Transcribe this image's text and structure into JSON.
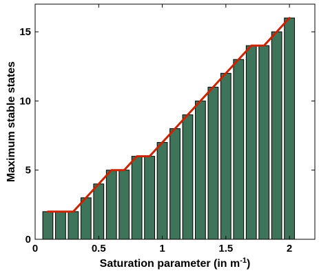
{
  "chart_data": {
    "type": "bar",
    "xlabel": "Saturation parameter (in m",
    "xlabel_sup": "-1",
    "xlabel_end": ")",
    "ylabel": "Maximum stable states",
    "xlim": [
      0,
      2.2
    ],
    "ylim": [
      0,
      17
    ],
    "xticks": [
      0,
      0.5,
      1,
      1.5,
      2
    ],
    "xtick_labels": [
      "0",
      "0.5",
      "1",
      "1.5",
      "2"
    ],
    "yticks": [
      0,
      5,
      10,
      15
    ],
    "ytick_labels": [
      "0",
      "5",
      "10",
      "15"
    ],
    "x": [
      0.1,
      0.2,
      0.3,
      0.4,
      0.5,
      0.6,
      0.7,
      0.8,
      0.9,
      1.0,
      1.1,
      1.2,
      1.3,
      1.4,
      1.5,
      1.6,
      1.7,
      1.8,
      1.9,
      2.0
    ],
    "values": [
      2,
      2,
      2,
      3,
      4,
      5,
      5,
      6,
      6,
      7,
      8,
      9,
      10,
      11,
      12,
      13,
      14,
      14,
      15,
      16
    ],
    "bar_color": "#3e7459",
    "line_color": "#cc2200",
    "grid": false
  }
}
